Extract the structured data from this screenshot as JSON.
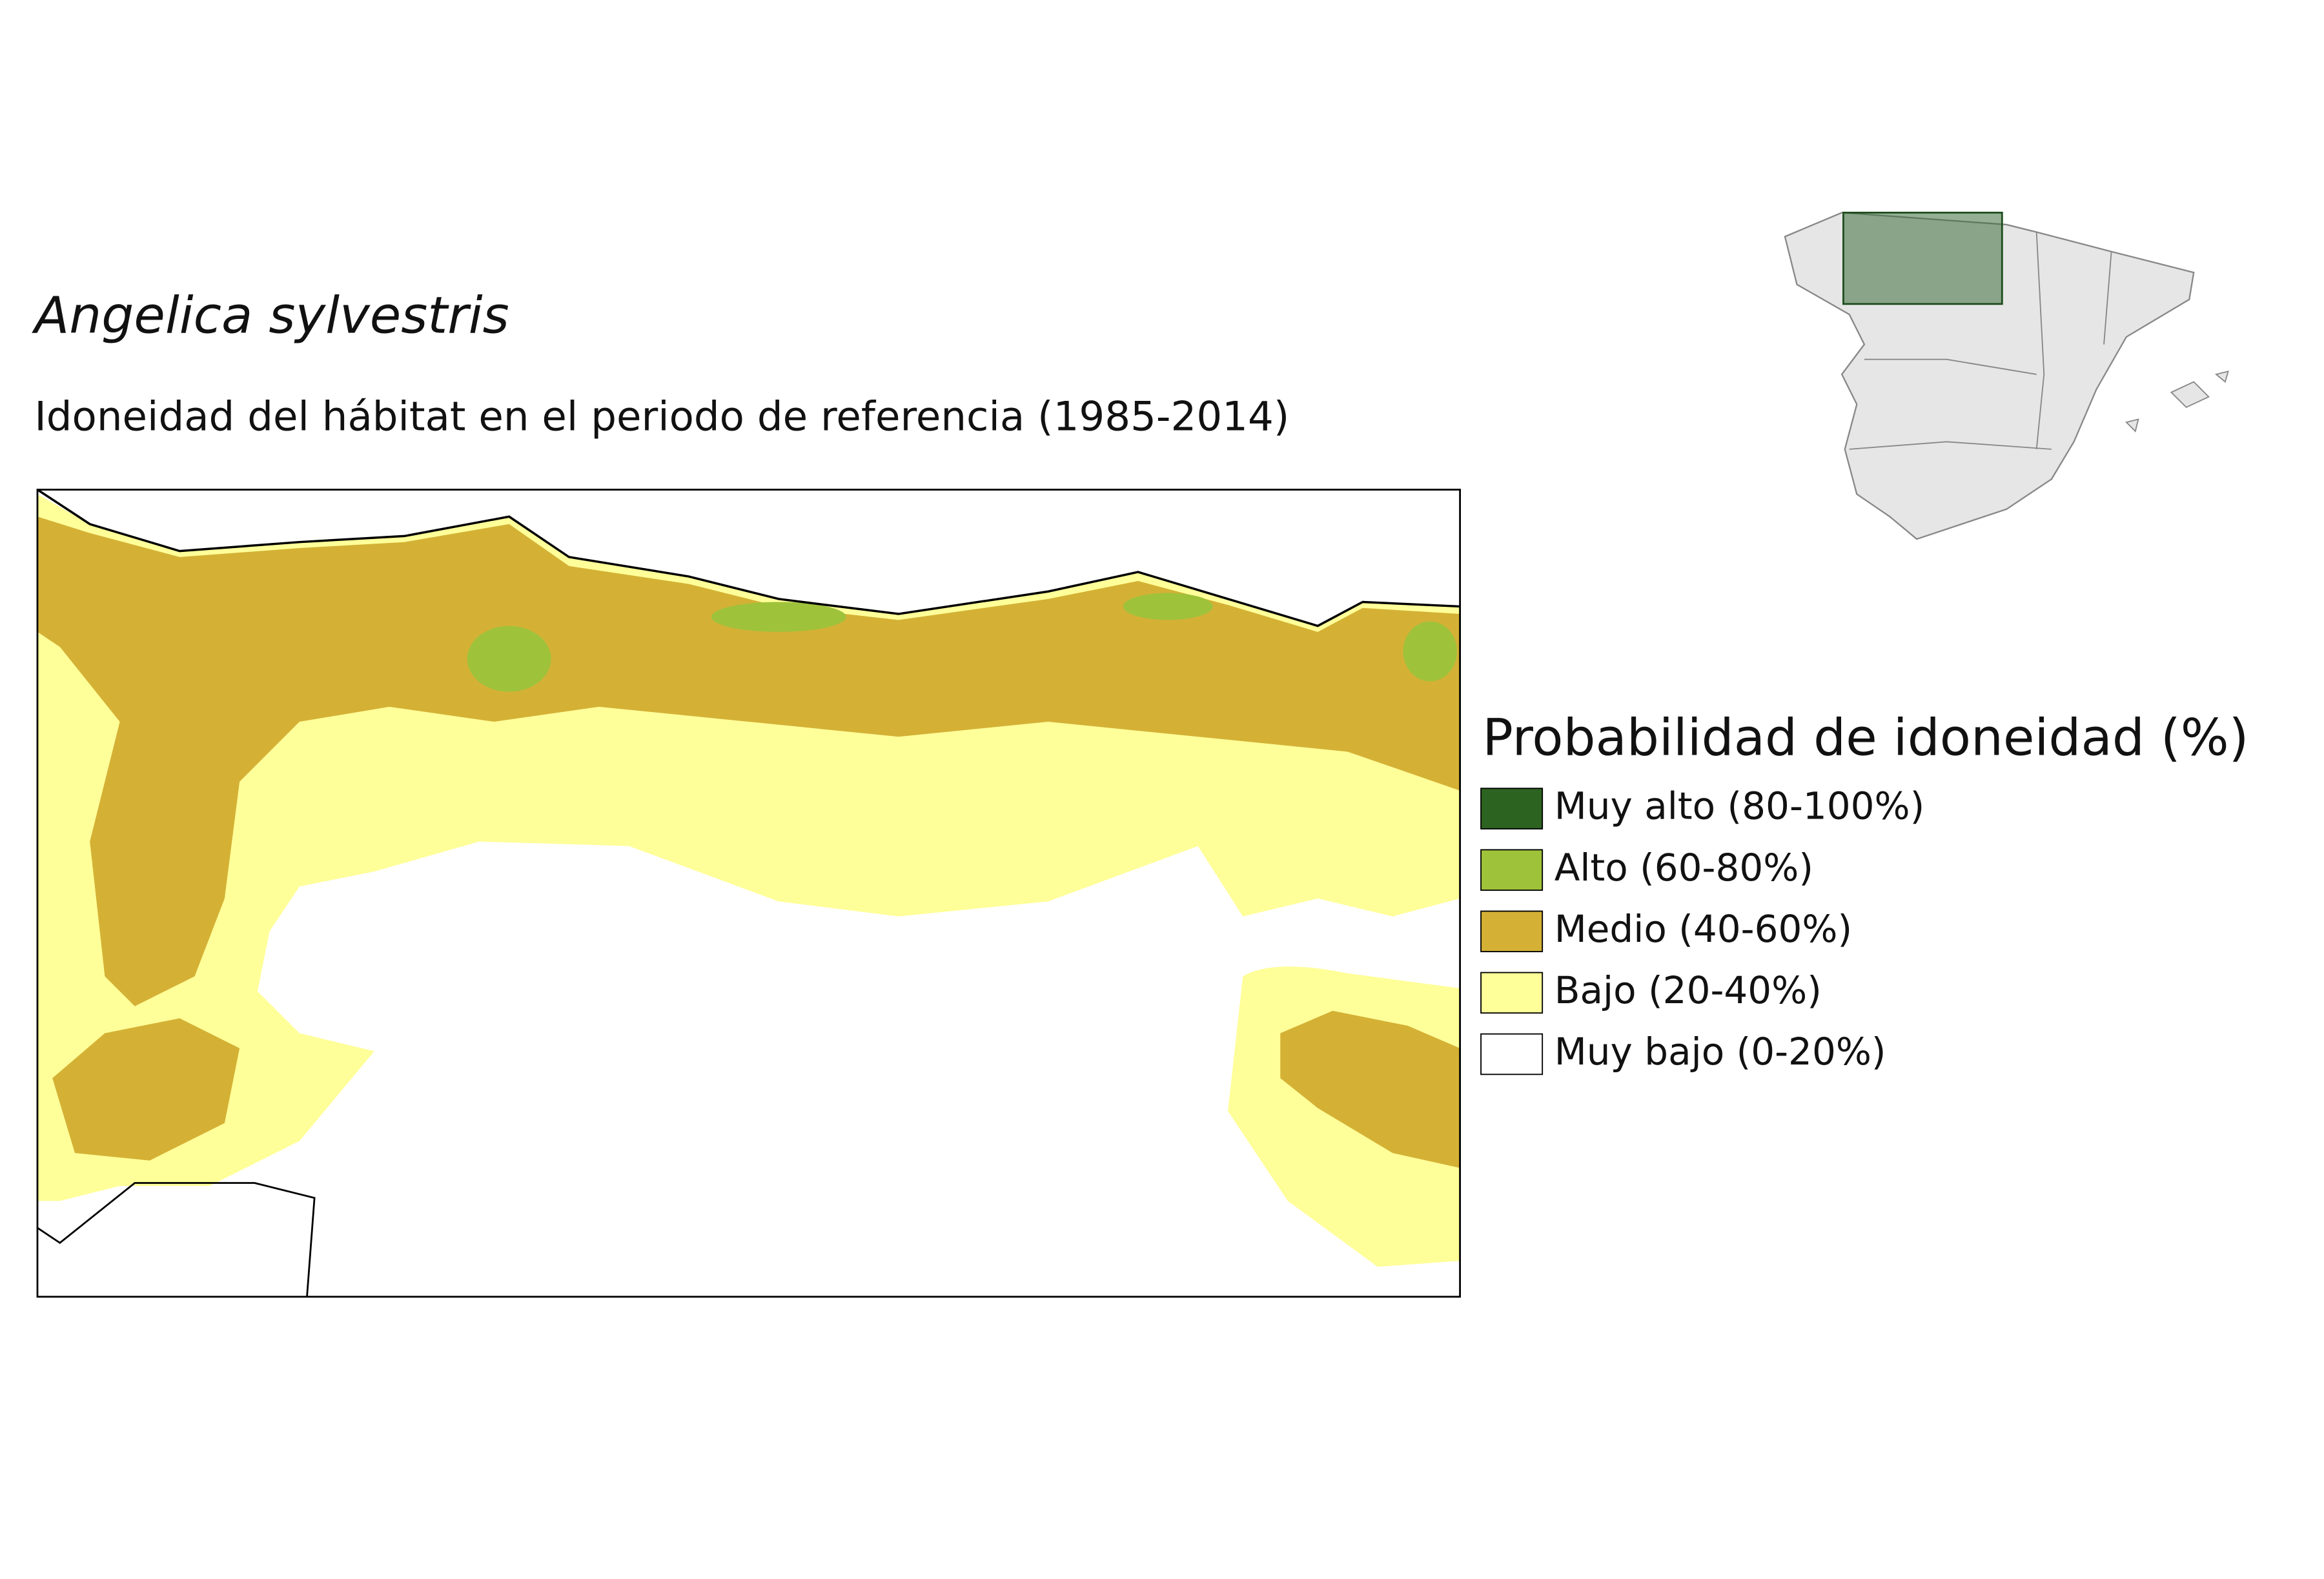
{
  "title": "Angelica sylvestris",
  "subtitle": "Idoneidad del hábitat en el periodo de referencia (1985-2014)",
  "legend": {
    "title": "Probabilidad de idoneidad (%)",
    "items": [
      {
        "label": "Muy alto (80-100%)",
        "color": "#2d6321"
      },
      {
        "label": "Alto (60-80%)",
        "color": "#9fc23b"
      },
      {
        "label": "Medio (40-60%)",
        "color": "#d4b135"
      },
      {
        "label": "Bajo (20-40%)",
        "color": "#ffff99"
      },
      {
        "label": "Muy bajo (0-20%)",
        "color": "#ffffff"
      }
    ]
  }
}
